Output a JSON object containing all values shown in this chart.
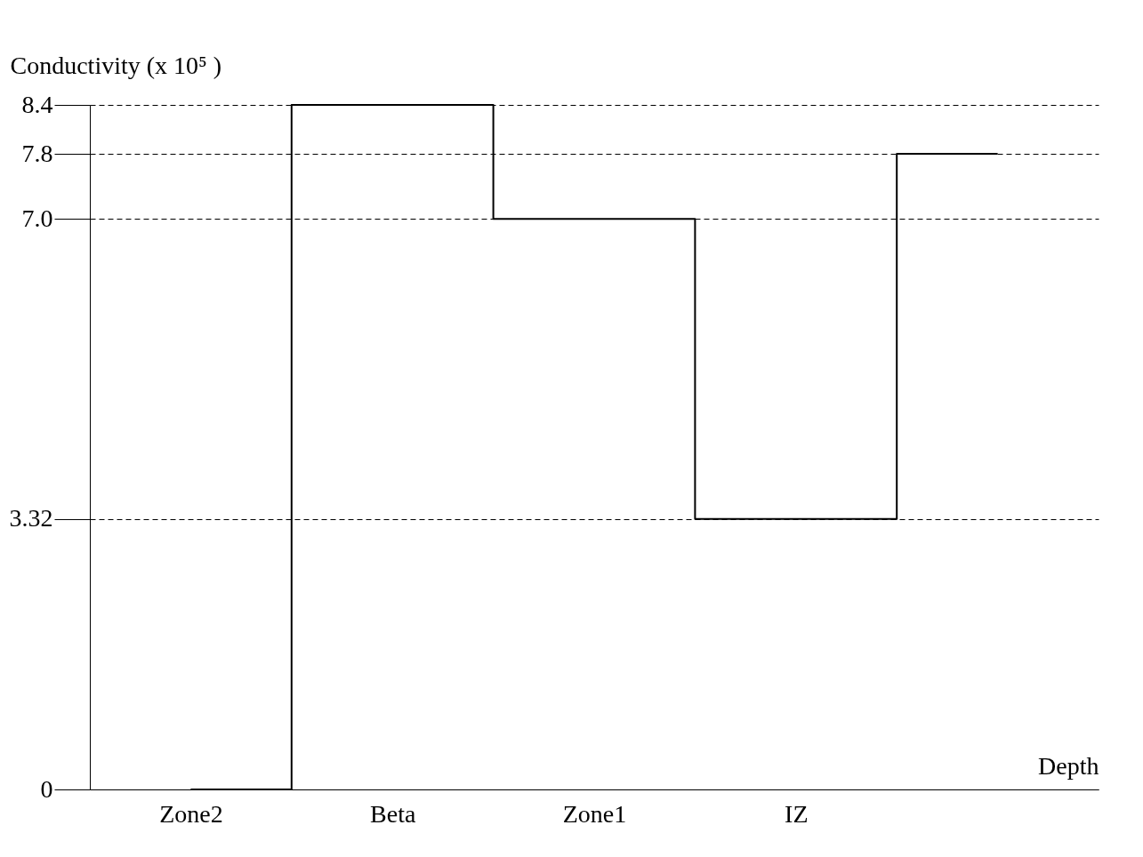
{
  "chart_data": {
    "type": "step",
    "xlabel": "Depth",
    "ylabel": "Conductivity (x 10⁵ )",
    "categories": [
      "Zone2",
      "Beta",
      "Zone1",
      "IZ",
      null
    ],
    "values": [
      0,
      8.4,
      7.0,
      3.32,
      7.8
    ],
    "color": "#000000",
    "ylim": [
      0,
      8.4
    ],
    "yticks": [
      0,
      {
        "value": 3.32,
        "label": "3.32"
      },
      {
        "value": 7,
        "label": "7.0"
      },
      {
        "value": 7.8,
        "label": "7.8"
      },
      {
        "value": 8.4,
        "label": "8.4"
      }
    ],
    "grid": "y",
    "marker": "none",
    "line_style": "solid"
  }
}
